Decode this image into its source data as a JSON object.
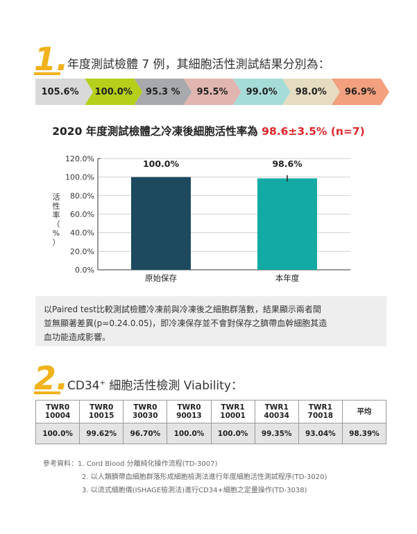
{
  "section1": {
    "number": "1.",
    "title": "年度測試檢體 7 例，其細胞活性測試結果分別為："
  },
  "chevrons": [
    {
      "label": "105.6%",
      "color": "#d9d9d9"
    },
    {
      "label": "100.0%",
      "color": "#b5cf1a"
    },
    {
      "label": "95.3 %",
      "color": "#a7a9ac"
    },
    {
      "label": "95.5%",
      "color": "#e2b6b0"
    },
    {
      "label": "99.0%",
      "color": "#a6dcd8"
    },
    {
      "label": "98.0%",
      "color": "#e5dcc1"
    },
    {
      "label": "96.9%",
      "color": "#f2a07e"
    }
  ],
  "chart_heading": {
    "main": "2020 年度測試檢體之冷凍後細胞活性率為 ",
    "highlight": "98.6±3.5% (n=7)"
  },
  "chart_data": {
    "type": "bar",
    "categories": [
      "原始保存",
      "本年度"
    ],
    "values": [
      100.0,
      98.6
    ],
    "value_labels": [
      "100.0%",
      "98.6%"
    ],
    "error_bar": [
      null,
      3.5
    ],
    "colors": [
      "#1d4a5e",
      "#13aaa3"
    ],
    "ylabel": "活性率（%）",
    "ylim": [
      0,
      120
    ],
    "yticks": [
      "0.0%",
      "20.0%",
      "40.0%",
      "60.0%",
      "80.0%",
      "100.0%",
      "120.0%"
    ],
    "grid": true
  },
  "note": {
    "line1": "以Paired test比較測試檢體冷凍前與冷凍後之細胞群落數，結果顯示兩者間",
    "line2": "並無顯著差異(p=0.24.0.05)，即冷凍保存並不會對保存之臍帶血幹細胞其造",
    "line3": "血功能造成影響。"
  },
  "section2": {
    "number": "2.",
    "title_pre": "CD34",
    "title_sup": "+",
    "title_post": " 細胞活性檢測 Viability："
  },
  "viability_table": {
    "headers": [
      [
        "TWR0",
        "10004"
      ],
      [
        "TWR0",
        "10015"
      ],
      [
        "TWR0",
        "30030"
      ],
      [
        "TWR0",
        "90013"
      ],
      [
        "TWR1",
        "10001"
      ],
      [
        "TWR1",
        "40034"
      ],
      [
        "TWR1",
        "70018"
      ],
      [
        "平均",
        ""
      ]
    ],
    "values": [
      "100.0%",
      "99.62%",
      "96.70%",
      "100.0%",
      "100.0%",
      "99.35%",
      "93.04%",
      "98.39%"
    ]
  },
  "references": {
    "label": "參考資料：",
    "items": [
      "1. Cord Blood 分離純化操作流程(TD-3007)",
      "2. 以人類臍帶血細胞群落形成細胞檢測法進行年度細胞活性測試程序(TD-3020)",
      "3. 以流式細胞儀(ISHAGE檢測法)進行CD34+細胞之定量操作(TD-3038)"
    ]
  }
}
